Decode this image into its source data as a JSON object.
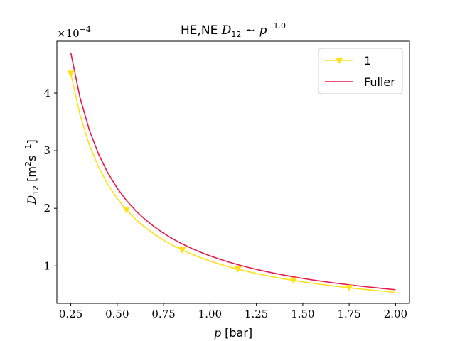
{
  "chart_data": {
    "type": "line",
    "title": {
      "prefix": "HE,NE ",
      "var": "D",
      "var_sub": "12",
      "sim": " ~ ",
      "base": "p",
      "exponent": "−1.0"
    },
    "xlabel": {
      "var": "p",
      "unit": " [bar]"
    },
    "ylabel": {
      "var": "D",
      "var_sub": "12",
      "unit_open": " [m",
      "unit_sup1": "2",
      "unit_mid": "s",
      "unit_sup2": "−1",
      "unit_close": "]"
    },
    "y_multiplier": {
      "prefix": "×10",
      "exponent": "−4"
    },
    "xlim": [
      0.175,
      2.075
    ],
    "ylim": [
      0.35,
      4.9
    ],
    "xticks": [
      0.25,
      0.5,
      0.75,
      1.0,
      1.25,
      1.5,
      1.75,
      2.0
    ],
    "xtick_labels": [
      "0.25",
      "0.50",
      "0.75",
      "1.00",
      "1.25",
      "1.50",
      "1.75",
      "2.00"
    ],
    "yticks": [
      1,
      2,
      3,
      4
    ],
    "ytick_labels": [
      "1",
      "2",
      "3",
      "4"
    ],
    "legend_position": "top-right",
    "series": [
      {
        "name": "1",
        "color": "#ffe119",
        "marker": "triangle-down",
        "model": {
          "a": 1.085,
          "exp": -1.0
        },
        "x": [
          0.25,
          0.3,
          0.35,
          0.4,
          0.45,
          0.5,
          0.55,
          0.6,
          0.65,
          0.7,
          0.75,
          0.8,
          0.85,
          0.9,
          0.95,
          1.0,
          1.05,
          1.1,
          1.15,
          1.2,
          1.25,
          1.3,
          1.35,
          1.4,
          1.45,
          1.5,
          1.55,
          1.6,
          1.65,
          1.7,
          1.75,
          1.8,
          1.85,
          1.9,
          1.95,
          2.0
        ],
        "marker_x": [
          0.25,
          0.55,
          0.85,
          1.15,
          1.45,
          1.75
        ]
      },
      {
        "name": "Fuller",
        "color": "#e6194b",
        "marker": "none",
        "model": {
          "a": 1.175,
          "exp": -1.0
        },
        "x": [
          0.25,
          0.3,
          0.35,
          0.4,
          0.45,
          0.5,
          0.55,
          0.6,
          0.65,
          0.7,
          0.75,
          0.8,
          0.85,
          0.9,
          0.95,
          1.0,
          1.05,
          1.1,
          1.15,
          1.2,
          1.25,
          1.3,
          1.35,
          1.4,
          1.45,
          1.5,
          1.55,
          1.6,
          1.65,
          1.7,
          1.75,
          1.8,
          1.85,
          1.9,
          1.95,
          2.0
        ],
        "marker_x": []
      }
    ]
  }
}
